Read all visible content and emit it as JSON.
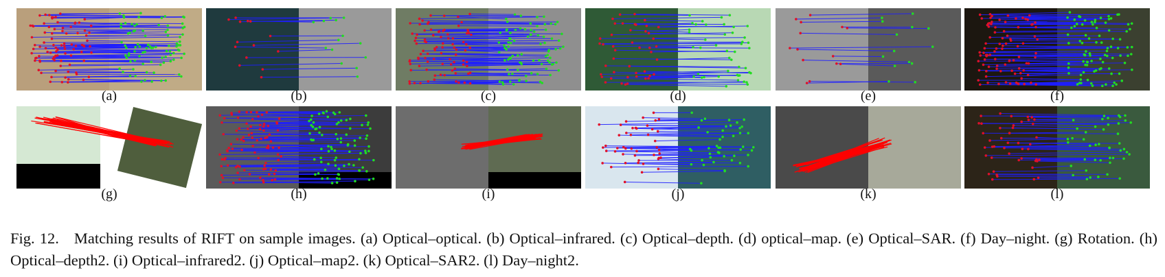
{
  "panels": [
    {
      "id": "a",
      "label": "(a)",
      "left_bg": "#b99f7c",
      "right_bg": "#c0ab86",
      "density": "high"
    },
    {
      "id": "b",
      "label": "(b)",
      "left_bg": "#1f3a3e",
      "right_bg": "#9a9a9a",
      "density": "low"
    },
    {
      "id": "c",
      "label": "(c)",
      "left_bg": "#6f7c64",
      "right_bg": "#8f8f8f",
      "density": "high"
    },
    {
      "id": "d",
      "label": "(d)",
      "left_bg": "#2f5a36",
      "right_bg": "#b8d8b4",
      "density": "mid"
    },
    {
      "id": "e",
      "label": "(e)",
      "left_bg": "#9a9a9a",
      "right_bg": "#5a5a5a",
      "density": "low"
    },
    {
      "id": "f",
      "label": "(f)",
      "left_bg": "#1c1710",
      "right_bg": "#3b4030",
      "density": "high"
    },
    {
      "id": "g",
      "label": "(g)",
      "left_bg": "#d5e8d3",
      "right_bg": "#4f5e3d",
      "density": "red"
    },
    {
      "id": "h",
      "label": "(h)",
      "left_bg": "#5a5a5a",
      "right_bg": "#3c3c3c",
      "density": "high"
    },
    {
      "id": "i",
      "label": "(i)",
      "left_bg": "#6d6d6d",
      "right_bg": "#5f6b52",
      "density": "red"
    },
    {
      "id": "j",
      "label": "(j)",
      "left_bg": "#d9e6ee",
      "right_bg": "#2f5e63",
      "density": "mid"
    },
    {
      "id": "k",
      "label": "(k)",
      "left_bg": "#4a4a4a",
      "right_bg": "#a7a99a",
      "density": "red"
    },
    {
      "id": "l",
      "label": "(l)",
      "left_bg": "#2c2418",
      "right_bg": "#3a5a3e",
      "density": "mid"
    }
  ],
  "caption": {
    "fig": "Fig. 12.",
    "text": "Matching results of RIFT on sample images. (a) Optical–optical. (b) Optical–infrared. (c) Optical–depth. (d) optical–map. (e) Optical–SAR. (f) Day–night. (g) Rotation. (h) Optical–depth2. (i) Optical–infrared2. (j) Optical–map2. (k) Optical–SAR2. (l) Day–night2."
  },
  "colors": {
    "match_line": "#1e1eff",
    "left_point": "#e0102a",
    "right_point": "#22dd22",
    "outlier": "#ff0000"
  }
}
